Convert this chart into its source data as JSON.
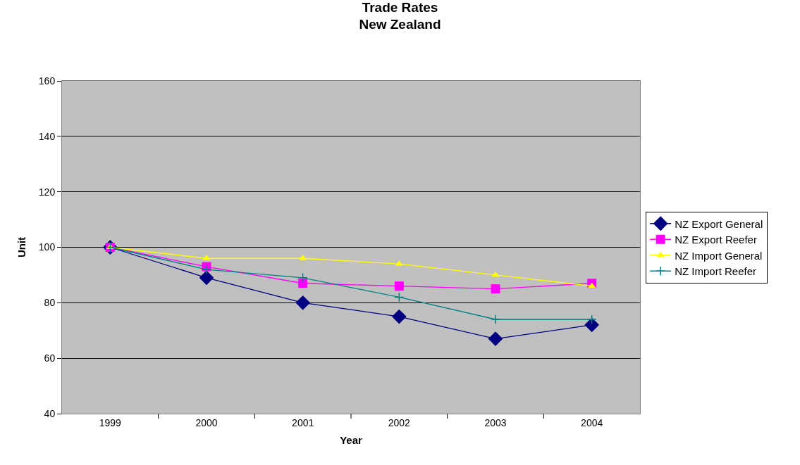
{
  "chart_data": {
    "type": "line",
    "title": "Trade Rates",
    "subtitle": "New Zealand",
    "xlabel": "Year",
    "ylabel": "Unit",
    "categories": [
      "1999",
      "2000",
      "2001",
      "2002",
      "2003",
      "2004"
    ],
    "series": [
      {
        "name": "NZ Export General",
        "color": "#000080",
        "marker": "diamond",
        "values": [
          100,
          89,
          80,
          75,
          67,
          72
        ]
      },
      {
        "name": "NZ Export Reefer",
        "color": "#ff00ff",
        "marker": "square",
        "values": [
          100,
          93,
          87,
          86,
          85,
          87
        ]
      },
      {
        "name": "NZ Import General",
        "color": "#ffff00",
        "marker": "triangle",
        "values": [
          100,
          96,
          96,
          94,
          90,
          86
        ]
      },
      {
        "name": "NZ Import Reefer",
        "color": "#008080",
        "marker": "cross",
        "values": [
          100,
          92,
          89,
          82,
          74,
          74
        ]
      }
    ],
    "ylim": [
      40,
      160
    ],
    "yticks": [
      40,
      60,
      80,
      100,
      120,
      140,
      160
    ],
    "grid": "y",
    "legend": "right",
    "line_style": "solid"
  }
}
